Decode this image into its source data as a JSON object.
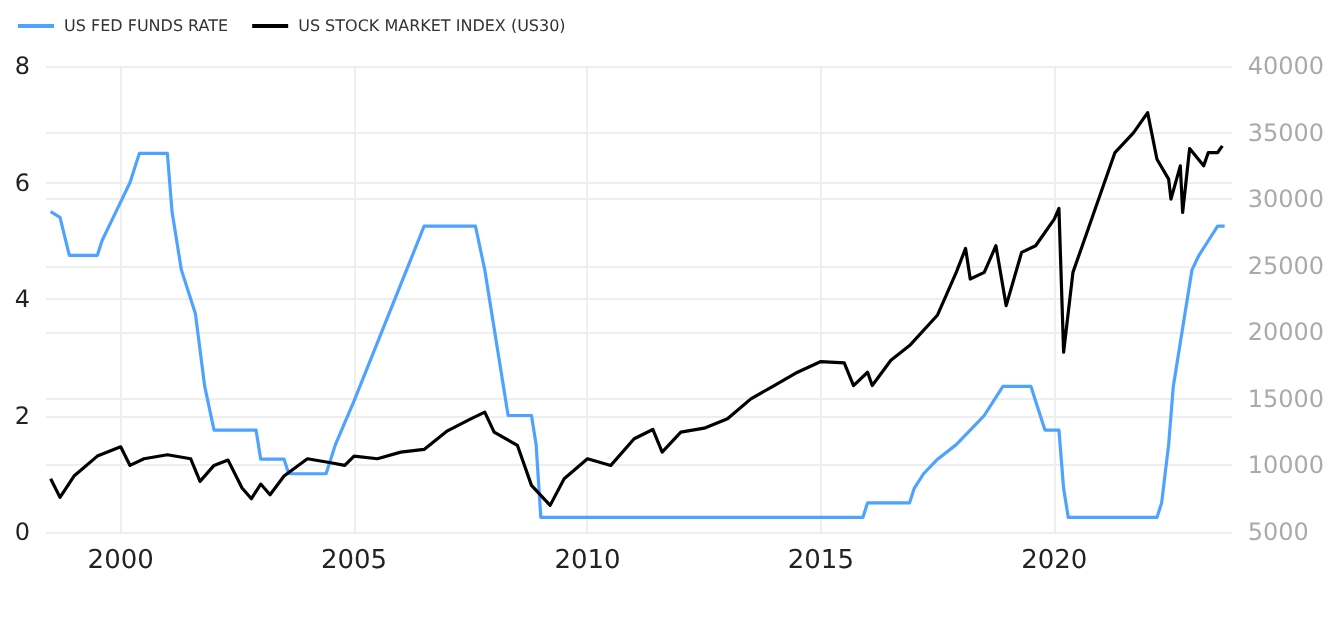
{
  "chart_data": {
    "type": "line",
    "series": [
      {
        "name": "US FED FUNDS RATE",
        "color": "#4da3ff",
        "x": [
          1998.5,
          1998.7,
          1998.9,
          1999.5,
          1999.6,
          1999.9,
          2000.2,
          2000.4,
          2001.0,
          2001.1,
          2001.3,
          2001.6,
          2001.8,
          2002.0,
          2002.9,
          2003.0,
          2003.5,
          2003.6,
          2004.4,
          2004.6,
          2005.0,
          2005.5,
          2006.0,
          2006.5,
          2007.6,
          2007.8,
          2008.0,
          2008.1,
          2008.3,
          2008.8,
          2008.9,
          2009.0,
          2015.9,
          2016.0,
          2016.9,
          2017.0,
          2017.2,
          2017.5,
          2017.9,
          2018.2,
          2018.5,
          2018.7,
          2018.9,
          2019.5,
          2019.6,
          2019.8,
          2020.1,
          2020.2,
          2020.3,
          2022.2,
          2022.3,
          2022.45,
          2022.55,
          2022.7,
          2022.8,
          2022.95,
          2023.1,
          2023.3,
          2023.5,
          2023.65
        ],
        "values": [
          5.5,
          5.4,
          4.75,
          4.75,
          5.0,
          5.5,
          6.0,
          6.5,
          6.5,
          5.5,
          4.5,
          3.75,
          2.5,
          1.75,
          1.75,
          1.25,
          1.25,
          1.0,
          1.0,
          1.5,
          2.25,
          3.25,
          4.25,
          5.25,
          5.25,
          4.5,
          3.5,
          3.0,
          2.0,
          2.0,
          1.5,
          0.25,
          0.25,
          0.5,
          0.5,
          0.75,
          1.0,
          1.25,
          1.5,
          1.75,
          2.0,
          2.25,
          2.5,
          2.5,
          2.25,
          1.75,
          1.75,
          0.75,
          0.25,
          0.25,
          0.5,
          1.5,
          2.5,
          3.25,
          3.75,
          4.5,
          4.75,
          5.0,
          5.25,
          5.25
        ]
      },
      {
        "name": "US STOCK MARKET INDEX (US30)",
        "color": "#000000",
        "axis": "y2",
        "x": [
          1998.5,
          1998.7,
          1999.0,
          1999.5,
          2000.0,
          2000.2,
          2000.5,
          2001.0,
          2001.5,
          2001.7,
          2002.0,
          2002.3,
          2002.6,
          2002.8,
          2003.0,
          2003.2,
          2003.5,
          2004.0,
          2004.5,
          2004.8,
          2005.0,
          2005.5,
          2006.0,
          2006.5,
          2007.0,
          2007.5,
          2007.8,
          2008.0,
          2008.5,
          2008.8,
          2009.2,
          2009.5,
          2010.0,
          2010.5,
          2011.0,
          2011.4,
          2011.6,
          2012.0,
          2012.5,
          2013.0,
          2013.5,
          2014.0,
          2014.5,
          2015.0,
          2015.5,
          2015.7,
          2016.0,
          2016.1,
          2016.5,
          2016.9,
          2017.5,
          2017.9,
          2018.1,
          2018.2,
          2018.5,
          2018.75,
          2018.97,
          2019.3,
          2019.6,
          2020.0,
          2020.1,
          2020.2,
          2020.4,
          2020.7,
          2020.9,
          2021.3,
          2021.7,
          2022.0,
          2022.2,
          2022.45,
          2022.5,
          2022.7,
          2022.75,
          2022.9,
          2023.2,
          2023.3,
          2023.5,
          2023.6
        ],
        "values": [
          9000,
          7600,
          9200,
          10700,
          11400,
          10000,
          10500,
          10800,
          10500,
          8800,
          10000,
          10400,
          8300,
          7500,
          8600,
          7800,
          9200,
          10500,
          10200,
          10000,
          10700,
          10500,
          11000,
          11200,
          12600,
          13500,
          14000,
          12500,
          11500,
          8500,
          7000,
          9000,
          10500,
          10000,
          12000,
          12700,
          11000,
          12500,
          12800,
          13500,
          15000,
          16000,
          17000,
          17800,
          17700,
          16000,
          17000,
          16000,
          17900,
          19000,
          21300,
          24500,
          26300,
          24000,
          24500,
          26500,
          22000,
          26000,
          26500,
          28500,
          29300,
          18500,
          24500,
          27500,
          29500,
          33500,
          35000,
          36500,
          33000,
          31500,
          30000,
          32500,
          29000,
          33800,
          32500,
          33500,
          33500,
          34000
        ]
      }
    ],
    "xlim": [
      1998.4,
      2023.8
    ],
    "xticks": [
      2000,
      2005,
      2010,
      2015,
      2020
    ],
    "ylim": [
      0,
      8
    ],
    "yticks": [
      0,
      2,
      4,
      6,
      8
    ],
    "y2lim": [
      5000,
      40000
    ],
    "y2ticks": [
      5000,
      10000,
      15000,
      20000,
      25000,
      30000,
      35000,
      40000
    ],
    "grid": true,
    "legend": "top left",
    "marker": "none",
    "line_style": "solid"
  }
}
